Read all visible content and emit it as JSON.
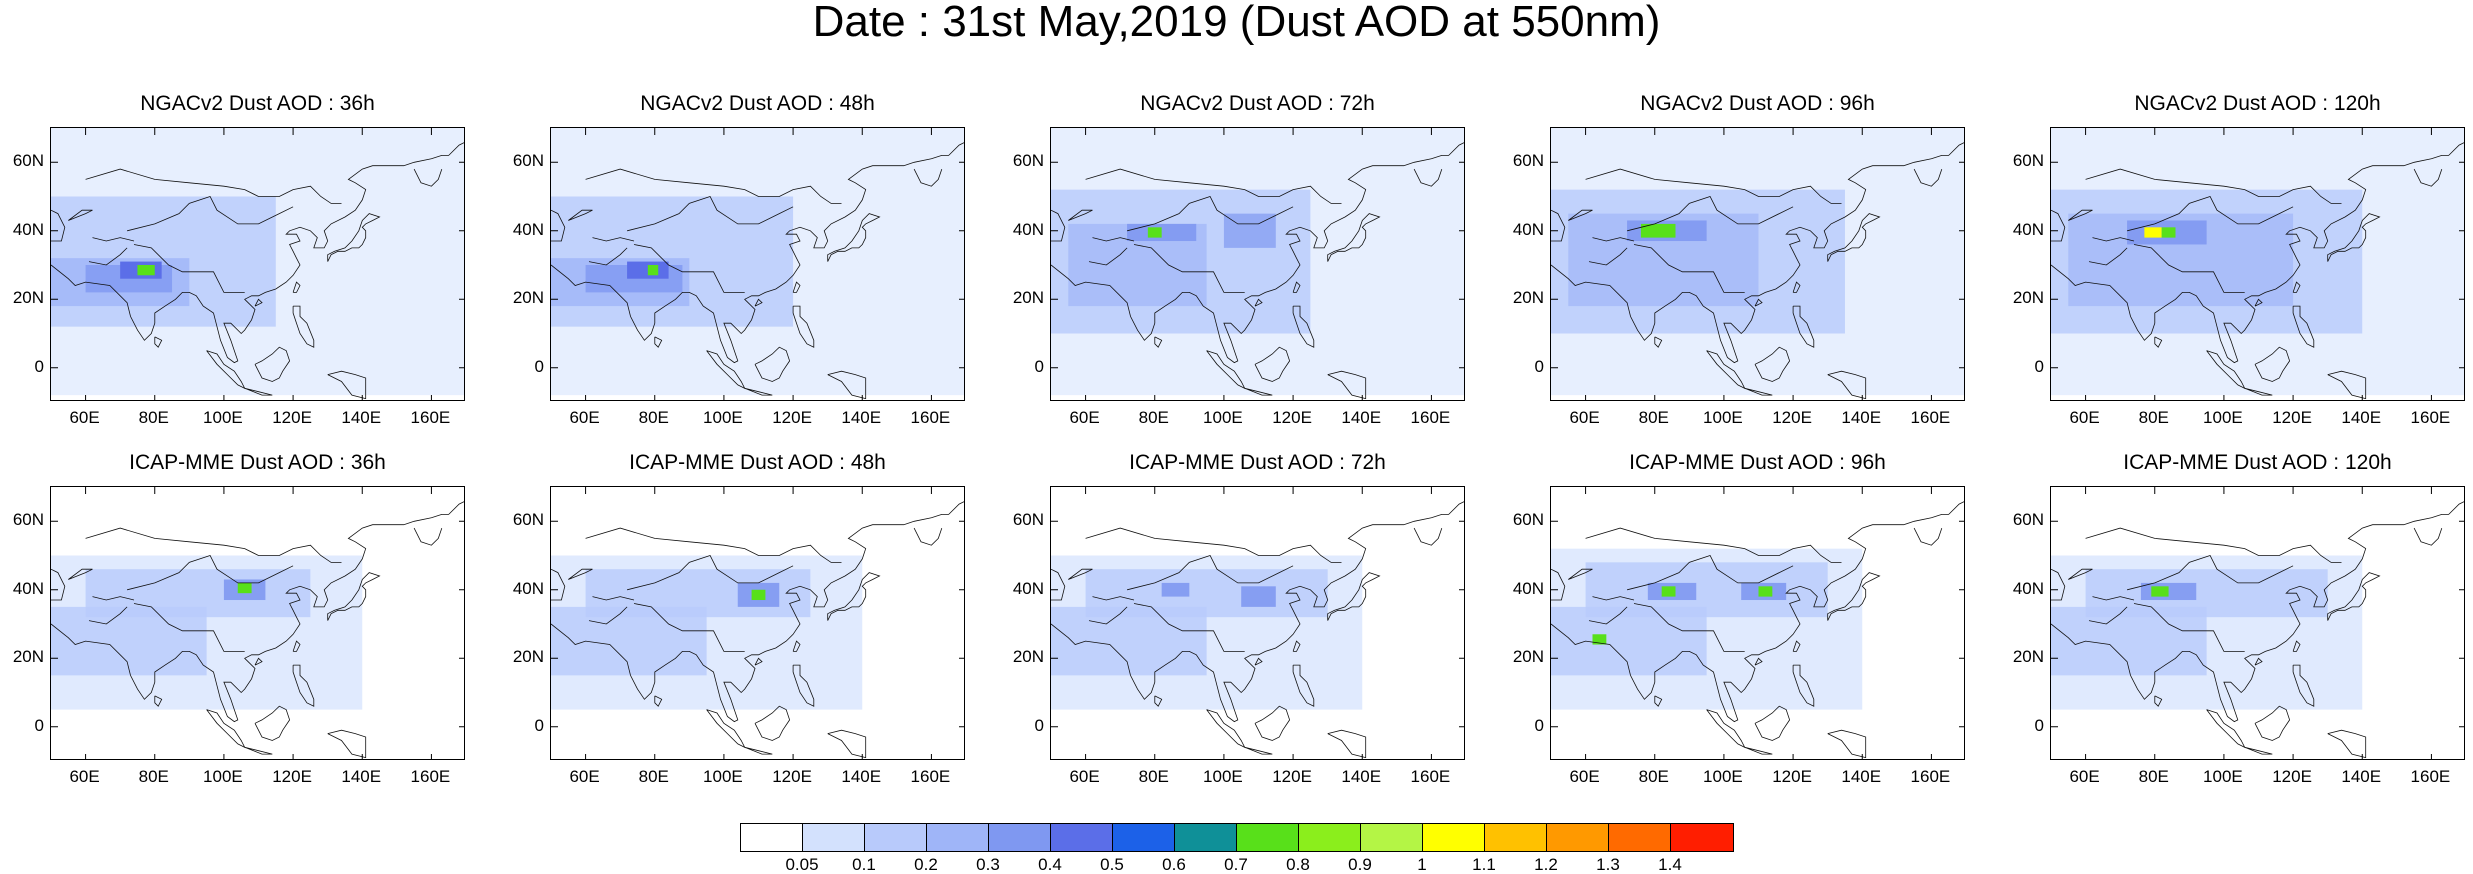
{
  "title": "Date : 31st May,2019 (Dust AOD at 550nm)",
  "panels": [
    {
      "title": "NGACv2 Dust AOD : 36h",
      "model": "NGAC",
      "lead": 36
    },
    {
      "title": "NGACv2 Dust AOD : 48h",
      "model": "NGAC",
      "lead": 48
    },
    {
      "title": "NGACv2 Dust AOD : 72h",
      "model": "NGAC",
      "lead": 72
    },
    {
      "title": "NGACv2 Dust AOD : 96h",
      "model": "NGAC",
      "lead": 96
    },
    {
      "title": "NGACv2 Dust AOD : 120h",
      "model": "NGAC",
      "lead": 120
    },
    {
      "title": "ICAP-MME Dust AOD : 36h",
      "model": "ICAP",
      "lead": 36
    },
    {
      "title": "ICAP-MME Dust AOD : 48h",
      "model": "ICAP",
      "lead": 48
    },
    {
      "title": "ICAP-MME Dust AOD : 72h",
      "model": "ICAP",
      "lead": 72
    },
    {
      "title": "ICAP-MME Dust AOD : 96h",
      "model": "ICAP",
      "lead": 96
    },
    {
      "title": "ICAP-MME Dust AOD : 120h",
      "model": "ICAP",
      "lead": 120
    }
  ],
  "lat_ticks": [
    "60N",
    "40N",
    "20N",
    "0"
  ],
  "lat_values": [
    60,
    40,
    20,
    0
  ],
  "lon_ticks": [
    "60E",
    "80E",
    "100E",
    "120E",
    "140E",
    "160E"
  ],
  "lon_values": [
    60,
    80,
    100,
    120,
    140,
    160
  ],
  "extent": {
    "lon_min": 50,
    "lon_max": 170,
    "lat_min": -10,
    "lat_max": 70
  },
  "colorbar": {
    "labels": [
      "0.05",
      "0.1",
      "0.2",
      "0.3",
      "0.4",
      "0.5",
      "0.6",
      "0.7",
      "0.8",
      "0.9",
      "1",
      "1.1",
      "1.2",
      "1.3",
      "1.4"
    ],
    "colors": [
      "#ffffff",
      "#d3e1fd",
      "#b8cafb",
      "#9fb5f8",
      "#7f98f1",
      "#5b6ee8",
      "#1c61e8",
      "#0f9098",
      "#58e01a",
      "#8bee1c",
      "#b4f545",
      "#ffff00",
      "#ffc100",
      "#ff9900",
      "#ff6a00",
      "#ff1e00"
    ]
  },
  "fields": {
    "NGAC": {
      "36": [
        {
          "lon": [
            50,
            170
          ],
          "lat": [
            -8,
            70
          ],
          "level": 1,
          "w": 0.55
        },
        {
          "lon": [
            50,
            115
          ],
          "lat": [
            12,
            50
          ],
          "level": 2,
          "w": 0.8
        },
        {
          "lon": [
            50,
            90
          ],
          "lat": [
            18,
            32
          ],
          "level": 3,
          "w": 0.8
        },
        {
          "lon": [
            60,
            85
          ],
          "lat": [
            22,
            30
          ],
          "level": 4,
          "w": 0.8
        },
        {
          "lon": [
            70,
            82
          ],
          "lat": [
            26,
            31
          ],
          "level": 5,
          "w": 1
        },
        {
          "lon": [
            75,
            80
          ],
          "lat": [
            27,
            30
          ],
          "level": 8,
          "w": 1
        }
      ],
      "48": [
        {
          "lon": [
            50,
            170
          ],
          "lat": [
            -8,
            70
          ],
          "level": 1,
          "w": 0.55
        },
        {
          "lon": [
            50,
            120
          ],
          "lat": [
            12,
            50
          ],
          "level": 2,
          "w": 0.8
        },
        {
          "lon": [
            50,
            90
          ],
          "lat": [
            18,
            32
          ],
          "level": 3,
          "w": 0.8
        },
        {
          "lon": [
            60,
            88
          ],
          "lat": [
            22,
            30
          ],
          "level": 4,
          "w": 0.8
        },
        {
          "lon": [
            72,
            84
          ],
          "lat": [
            26,
            31
          ],
          "level": 5,
          "w": 1
        },
        {
          "lon": [
            78,
            81
          ],
          "lat": [
            27,
            30
          ],
          "level": 8,
          "w": 1
        }
      ],
      "72": [
        {
          "lon": [
            50,
            170
          ],
          "lat": [
            -8,
            70
          ],
          "level": 1,
          "w": 0.55
        },
        {
          "lon": [
            50,
            125
          ],
          "lat": [
            10,
            52
          ],
          "level": 2,
          "w": 0.8
        },
        {
          "lon": [
            55,
            95
          ],
          "lat": [
            18,
            42
          ],
          "level": 3,
          "w": 0.7
        },
        {
          "lon": [
            72,
            92
          ],
          "lat": [
            37,
            42
          ],
          "level": 4,
          "w": 0.9
        },
        {
          "lon": [
            100,
            115
          ],
          "lat": [
            35,
            45
          ],
          "level": 4,
          "w": 0.7
        },
        {
          "lon": [
            78,
            82
          ],
          "lat": [
            38,
            41
          ],
          "level": 8,
          "w": 1
        }
      ],
      "96": [
        {
          "lon": [
            50,
            170
          ],
          "lat": [
            -8,
            70
          ],
          "level": 1,
          "w": 0.55
        },
        {
          "lon": [
            50,
            135
          ],
          "lat": [
            10,
            52
          ],
          "level": 2,
          "w": 0.8
        },
        {
          "lon": [
            55,
            110
          ],
          "lat": [
            18,
            45
          ],
          "level": 3,
          "w": 0.7
        },
        {
          "lon": [
            72,
            95
          ],
          "lat": [
            37,
            43
          ],
          "level": 4,
          "w": 0.9
        },
        {
          "lon": [
            76,
            86
          ],
          "lat": [
            38,
            42
          ],
          "level": 8,
          "w": 1
        }
      ],
      "120": [
        {
          "lon": [
            50,
            170
          ],
          "lat": [
            -8,
            70
          ],
          "level": 1,
          "w": 0.55
        },
        {
          "lon": [
            50,
            140
          ],
          "lat": [
            10,
            52
          ],
          "level": 2,
          "w": 0.8
        },
        {
          "lon": [
            55,
            120
          ],
          "lat": [
            18,
            45
          ],
          "level": 3,
          "w": 0.7
        },
        {
          "lon": [
            72,
            95
          ],
          "lat": [
            36,
            43
          ],
          "level": 4,
          "w": 0.9
        },
        {
          "lon": [
            77,
            82
          ],
          "lat": [
            38,
            41
          ],
          "level": 11,
          "w": 1
        },
        {
          "lon": [
            82,
            86
          ],
          "lat": [
            38,
            41
          ],
          "level": 8,
          "w": 1
        }
      ]
    },
    "ICAP": {
      "36": [
        {
          "lon": [
            50,
            140
          ],
          "lat": [
            5,
            50
          ],
          "level": 1,
          "w": 0.7
        },
        {
          "lon": [
            60,
            125
          ],
          "lat": [
            32,
            46
          ],
          "level": 2,
          "w": 0.8
        },
        {
          "lon": [
            50,
            95
          ],
          "lat": [
            15,
            35
          ],
          "level": 2,
          "w": 0.8
        },
        {
          "lon": [
            100,
            112
          ],
          "lat": [
            37,
            43
          ],
          "level": 4,
          "w": 0.9
        },
        {
          "lon": [
            104,
            108
          ],
          "lat": [
            39,
            42
          ],
          "level": 8,
          "w": 1
        }
      ],
      "48": [
        {
          "lon": [
            50,
            140
          ],
          "lat": [
            5,
            50
          ],
          "level": 1,
          "w": 0.7
        },
        {
          "lon": [
            60,
            125
          ],
          "lat": [
            32,
            46
          ],
          "level": 2,
          "w": 0.8
        },
        {
          "lon": [
            50,
            95
          ],
          "lat": [
            15,
            35
          ],
          "level": 2,
          "w": 0.8
        },
        {
          "lon": [
            104,
            116
          ],
          "lat": [
            35,
            42
          ],
          "level": 4,
          "w": 0.9
        },
        {
          "lon": [
            108,
            112
          ],
          "lat": [
            37,
            40
          ],
          "level": 8,
          "w": 1
        }
      ],
      "72": [
        {
          "lon": [
            50,
            140
          ],
          "lat": [
            5,
            50
          ],
          "level": 1,
          "w": 0.7
        },
        {
          "lon": [
            60,
            130
          ],
          "lat": [
            32,
            46
          ],
          "level": 2,
          "w": 0.8
        },
        {
          "lon": [
            50,
            95
          ],
          "lat": [
            15,
            35
          ],
          "level": 2,
          "w": 0.8
        },
        {
          "lon": [
            82,
            90
          ],
          "lat": [
            38,
            42
          ],
          "level": 4,
          "w": 0.9
        },
        {
          "lon": [
            105,
            115
          ],
          "lat": [
            35,
            41
          ],
          "level": 4,
          "w": 0.9
        }
      ],
      "96": [
        {
          "lon": [
            50,
            140
          ],
          "lat": [
            5,
            52
          ],
          "level": 1,
          "w": 0.7
        },
        {
          "lon": [
            60,
            130
          ],
          "lat": [
            32,
            48
          ],
          "level": 2,
          "w": 0.8
        },
        {
          "lon": [
            50,
            95
          ],
          "lat": [
            15,
            35
          ],
          "level": 2,
          "w": 0.8
        },
        {
          "lon": [
            78,
            92
          ],
          "lat": [
            37,
            42
          ],
          "level": 4,
          "w": 0.9
        },
        {
          "lon": [
            105,
            118
          ],
          "lat": [
            37,
            42
          ],
          "level": 4,
          "w": 0.9
        },
        {
          "lon": [
            82,
            86
          ],
          "lat": [
            38,
            41
          ],
          "level": 8,
          "w": 1
        },
        {
          "lon": [
            110,
            114
          ],
          "lat": [
            38,
            41
          ],
          "level": 8,
          "w": 1
        },
        {
          "lon": [
            62,
            66
          ],
          "lat": [
            24,
            27
          ],
          "level": 8,
          "w": 1
        }
      ],
      "120": [
        {
          "lon": [
            50,
            140
          ],
          "lat": [
            5,
            50
          ],
          "level": 1,
          "w": 0.7
        },
        {
          "lon": [
            60,
            130
          ],
          "lat": [
            32,
            46
          ],
          "level": 2,
          "w": 0.8
        },
        {
          "lon": [
            50,
            95
          ],
          "lat": [
            15,
            35
          ],
          "level": 2,
          "w": 0.8
        },
        {
          "lon": [
            76,
            92
          ],
          "lat": [
            37,
            42
          ],
          "level": 4,
          "w": 0.9
        },
        {
          "lon": [
            79,
            84
          ],
          "lat": [
            38,
            41
          ],
          "level": 8,
          "w": 1
        }
      ]
    }
  }
}
